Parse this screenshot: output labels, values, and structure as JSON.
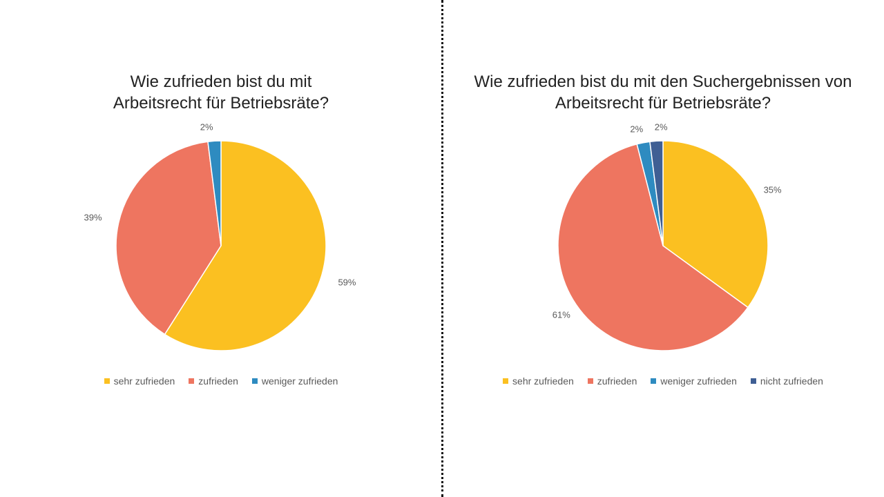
{
  "chart_data": [
    {
      "type": "pie",
      "title_lines": [
        "Wie zufrieden bist du mit",
        "Arbeitsrecht für Betriebsräte?"
      ],
      "categories": [
        "sehr zufrieden",
        "zufrieden",
        "weniger zufrieden"
      ],
      "values": [
        59,
        39,
        2
      ],
      "labels": [
        "59%",
        "39%",
        "2%"
      ],
      "colors": [
        "#FBC021",
        "#EE7560",
        "#2E8BC0"
      ],
      "legend_position": "bottom"
    },
    {
      "type": "pie",
      "title_lines": [
        "Wie zufrieden bist du mit den Suchergebnissen von",
        "Arbeitsrecht für Betriebsräte?"
      ],
      "categories": [
        "sehr zufrieden",
        "zufrieden",
        "weniger zufrieden",
        "nicht zufrieden"
      ],
      "values": [
        35,
        61,
        2,
        2
      ],
      "labels": [
        "35%",
        "61%",
        "2%",
        "2%"
      ],
      "colors": [
        "#FBC021",
        "#EE7560",
        "#2E8BC0",
        "#3F5F94"
      ],
      "legend_position": "bottom"
    }
  ]
}
